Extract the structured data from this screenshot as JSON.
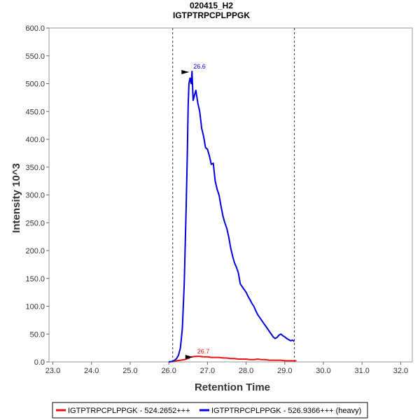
{
  "chart_data": {
    "type": "line",
    "title": "020415_H2",
    "subtitle": "IGTPTRPCPLPPGK",
    "xlabel": "Retention Time",
    "ylabel": "Intensity 10^3",
    "xlim": [
      22.9,
      32.3
    ],
    "ylim": [
      0,
      600
    ],
    "xticks": [
      "23.0",
      "24.0",
      "25.0",
      "26.0",
      "27.0",
      "28.0",
      "29.0",
      "30.0",
      "31.0",
      "32.0"
    ],
    "xtick_values": [
      23,
      24,
      25,
      26,
      27,
      28,
      29,
      30,
      31,
      32
    ],
    "yticks": [
      "0.0",
      "50.0",
      "100.0",
      "150.0",
      "200.0",
      "250.0",
      "300.0",
      "350.0",
      "400.0",
      "450.0",
      "500.0",
      "550.0",
      "600.0"
    ],
    "ytick_values": [
      0,
      50,
      100,
      150,
      200,
      250,
      300,
      350,
      400,
      450,
      500,
      550,
      600
    ],
    "integration_bounds": [
      26.1,
      29.25
    ],
    "legend_position": "bottom",
    "series": [
      {
        "name": "IGTPTRPCPLPPGK - 524.2652+++",
        "color": "#ee1111",
        "peak_label": "26.7",
        "peak": [
          26.7,
          10
        ],
        "x": [
          26.0,
          26.1,
          26.2,
          26.3,
          26.4,
          26.5,
          26.55,
          26.6,
          26.7,
          26.8,
          26.9,
          27.0,
          27.1,
          27.2,
          27.3,
          27.4,
          27.5,
          27.6,
          27.7,
          27.8,
          27.9,
          28.0,
          28.1,
          28.2,
          28.3,
          28.4,
          28.5,
          28.6,
          28.7,
          28.8,
          28.9,
          29.0,
          29.1,
          29.2,
          29.3
        ],
        "y": [
          0,
          1,
          2,
          3,
          4,
          6,
          8,
          9,
          10,
          10,
          9,
          9,
          8,
          8,
          8,
          7,
          7,
          6,
          6,
          5,
          5,
          5,
          4,
          4,
          5,
          4,
          4,
          3,
          3,
          3,
          3,
          2,
          2,
          2,
          2
        ]
      },
      {
        "name": "IGTPTRPCPLPPGK - 526.9366+++ (heavy)",
        "color": "#0000dd",
        "peak_label": "26.6",
        "peak": [
          26.6,
          522
        ],
        "x": [
          26.0,
          26.1,
          26.15,
          26.2,
          26.25,
          26.3,
          26.35,
          26.4,
          26.45,
          26.48,
          26.5,
          26.52,
          26.55,
          26.58,
          26.6,
          26.63,
          26.66,
          26.7,
          26.75,
          26.8,
          26.85,
          26.9,
          26.95,
          27.0,
          27.05,
          27.1,
          27.15,
          27.2,
          27.25,
          27.3,
          27.35,
          27.4,
          27.45,
          27.5,
          27.55,
          27.6,
          27.65,
          27.7,
          27.75,
          27.8,
          27.85,
          27.9,
          27.95,
          28.0,
          28.05,
          28.1,
          28.15,
          28.2,
          28.25,
          28.3,
          28.35,
          28.4,
          28.45,
          28.5,
          28.55,
          28.6,
          28.65,
          28.7,
          28.75,
          28.8,
          28.85,
          28.9,
          28.95,
          29.0,
          29.05,
          29.1,
          29.15,
          29.2,
          29.25
        ],
        "y": [
          0,
          1,
          3,
          6,
          12,
          25,
          60,
          140,
          280,
          380,
          460,
          500,
          510,
          500,
          522,
          470,
          478,
          488,
          465,
          450,
          420,
          405,
          385,
          382,
          370,
          355,
          357,
          325,
          310,
          300,
          280,
          262,
          250,
          240,
          225,
          205,
          190,
          178,
          170,
          160,
          140,
          135,
          130,
          125,
          118,
          112,
          105,
          100,
          92,
          85,
          80,
          75,
          70,
          65,
          60,
          55,
          50,
          45,
          42,
          44,
          48,
          50,
          47,
          45,
          42,
          40,
          38,
          39,
          37
        ]
      }
    ]
  }
}
